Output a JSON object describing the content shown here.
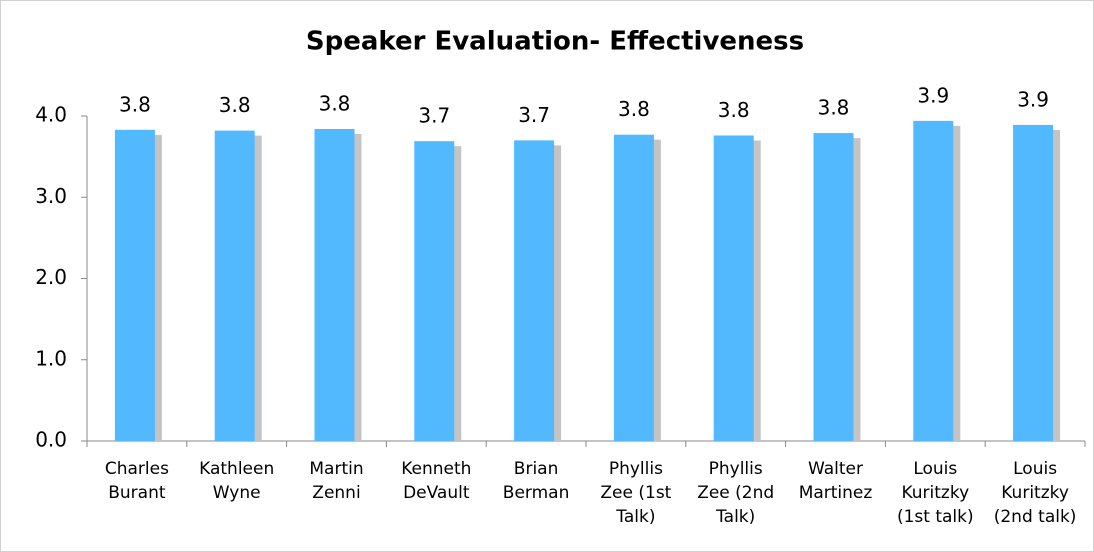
{
  "chart_data": {
    "type": "bar",
    "title": "Speaker Evaluation- Effectiveness",
    "categories": [
      "Charles\nBurant",
      "Kathleen\nWyne",
      "Martin\nZenni",
      "Kenneth\nDeVault",
      "Brian\nBerman",
      "Phyllis\nZee (1st\nTalk)",
      "Phyllis\nZee (2nd\nTalk)",
      "Walter\nMartinez",
      "Louis\nKuritzky\n(1st talk)",
      "Louis\nKuritzky\n(2nd talk)"
    ],
    "values": [
      3.83,
      3.82,
      3.84,
      3.69,
      3.7,
      3.77,
      3.76,
      3.79,
      3.94,
      3.89
    ],
    "value_labels": [
      "3.8",
      "3.8",
      "3.8",
      "3.7",
      "3.7",
      "3.8",
      "3.8",
      "3.8",
      "3.9",
      "3.9"
    ],
    "color": "#52b9ff",
    "shadow_color": "#c4c4c4",
    "ylim": [
      0,
      4
    ],
    "yticks": [
      {
        "value": 0,
        "label": "0.0"
      },
      {
        "value": 1,
        "label": "1.0"
      },
      {
        "value": 2,
        "label": "2.0"
      },
      {
        "value": 3,
        "label": "3.0"
      },
      {
        "value": 4,
        "label": "4.0"
      }
    ],
    "grid": false
  }
}
